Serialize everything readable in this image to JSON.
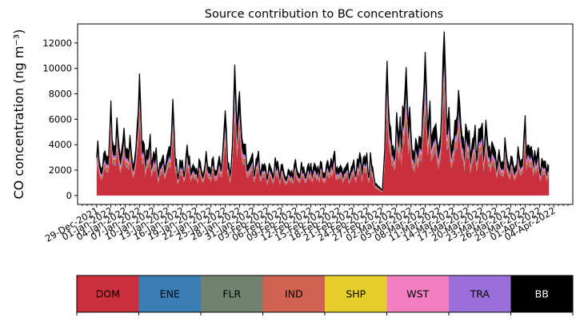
{
  "chart_data": {
    "type": "area",
    "title": "Source contribution to BC concentrations",
    "ylabel": "CO concentration (ng m⁻³)",
    "xlabel": "",
    "ylim": [
      -700,
      13500
    ],
    "yticks": [
      0,
      2000,
      4000,
      6000,
      8000,
      10000,
      12000
    ],
    "ytick_labels": [
      "0",
      "2000",
      "4000",
      "6000",
      "8000",
      "10000",
      "12000"
    ],
    "xlim_day": [
      -4,
      100
    ],
    "data_range_day": [
      0,
      95
    ],
    "xtick_days": [
      0,
      3,
      6,
      9,
      12,
      15,
      18,
      21,
      24,
      27,
      30,
      33,
      36,
      39,
      42,
      45,
      48,
      51,
      54,
      57,
      60,
      63,
      66,
      69,
      72,
      75,
      78,
      81,
      84,
      87,
      90,
      93,
      96
    ],
    "xtick_labels": [
      "29-Dec-2021",
      "01-Jan-2022",
      "04-Jan-2022",
      "07-Jan-2022",
      "10-Jan-2022",
      "13-Jan-2022",
      "16-Jan-2022",
      "19-Jan-2022",
      "22-Jan-2022",
      "25-Jan-2022",
      "28-Jan-2022",
      "31-Jan-2022",
      "03-Feb-2022",
      "06-Feb-2022",
      "09-Feb-2022",
      "12-Feb-2022",
      "15-Feb-2022",
      "18-Feb-2022",
      "21-Feb-2022",
      "24-Feb-2022",
      "27-Feb-2022",
      "02-Mar-2022",
      "05-Mar-2022",
      "08-Mar-2022",
      "11-Mar-2022",
      "14-Mar-2022",
      "17-Mar-2022",
      "20-Mar-2022",
      "23-Mar-2022",
      "26-Mar-2022",
      "29-Mar-2022",
      "01-Apr-2022",
      "04-Apr-2022"
    ],
    "total_series": {
      "name": "Total",
      "days": [
        0,
        1,
        2,
        3,
        4,
        5,
        6,
        7,
        8,
        9,
        10,
        11,
        12,
        13,
        14,
        15,
        16,
        17,
        18,
        19,
        20,
        21,
        22,
        23,
        24,
        25,
        26,
        27,
        28,
        29,
        30,
        31,
        32,
        33,
        34,
        35,
        36,
        37,
        38,
        39,
        40,
        41,
        42,
        43,
        44,
        45,
        46,
        47,
        48,
        49,
        50,
        51,
        52,
        53,
        54,
        55,
        56,
        57,
        58,
        59,
        60,
        61,
        62,
        63,
        64,
        65,
        66,
        67,
        68,
        69,
        70,
        71,
        72,
        73,
        74,
        75,
        76,
        77,
        78,
        79,
        80,
        81,
        82,
        83,
        84,
        85,
        86,
        87,
        88,
        89,
        90,
        91,
        92,
        93,
        94,
        95
      ],
      "values": [
        3400,
        3300,
        3800,
        5600,
        5500,
        4900,
        5200,
        3900,
        4100,
        3500,
        4200,
        4000,
        3600,
        2900,
        3200,
        3900,
        2400,
        2600,
        2900,
        3600,
        2800,
        2300,
        2500,
        3000,
        2600,
        2700,
        3100,
        4100,
        2000,
        3500,
        5200,
        4200,
        3300,
        3200,
        3100,
        2600,
        2400,
        2500,
        2600,
        2300,
        2100,
        2300,
        2600,
        2200,
        2700,
        2500,
        2700,
        2200,
        2600,
        3000,
        3200,
        2500,
        2800,
        2400,
        2700,
        2900,
        3200,
        3000,
        2600,
        800,
        700,
        4800,
        4500,
        5800,
        6200,
        6800,
        5400,
        4200,
        5600,
        4800,
        6700,
        6500,
        5500,
        7100,
        6400,
        5300,
        5900,
        5600,
        5400,
        4900,
        5700,
        5600,
        5500,
        4400,
        3800,
        3300,
        3600,
        3200,
        3100,
        3700,
        4800,
        4400,
        3700,
        3300,
        3000,
        2900
      ],
      "spikes": [
        {
          "day": 9,
          "value": 9600
        },
        {
          "day": 16,
          "value": 7600
        },
        {
          "day": 27,
          "value": 6700
        },
        {
          "day": 29,
          "value": 10300
        },
        {
          "day": 30,
          "value": 8200
        },
        {
          "day": 61,
          "value": 10600
        },
        {
          "day": 65,
          "value": 10100
        },
        {
          "day": 69,
          "value": 11300
        },
        {
          "day": 73,
          "value": 12900
        },
        {
          "day": 76,
          "value": 8300
        }
      ]
    },
    "series": [
      {
        "name": "DOM",
        "color": "#c9303b",
        "fraction": 0.6
      },
      {
        "name": "ENE",
        "color": "#3a7db5",
        "fraction": 0.015
      },
      {
        "name": "FLR",
        "color": "#6f836f",
        "fraction": 0.015
      },
      {
        "name": "IND",
        "color": "#cf6251",
        "fraction": 0.09
      },
      {
        "name": "SHP",
        "color": "#e5cd2b",
        "fraction": 0.005
      },
      {
        "name": "WST",
        "color": "#f27fc0",
        "fraction": 0.025
      },
      {
        "name": "TRA",
        "color": "#9a6fd9",
        "fraction": 0.05
      },
      {
        "name": "BB",
        "color": "#000000",
        "fraction": 0.2
      }
    ],
    "legend": {
      "position": "bottom",
      "labels": [
        "DOM",
        "ENE",
        "FLR",
        "IND",
        "SHP",
        "WST",
        "TRA",
        "BB"
      ]
    }
  }
}
